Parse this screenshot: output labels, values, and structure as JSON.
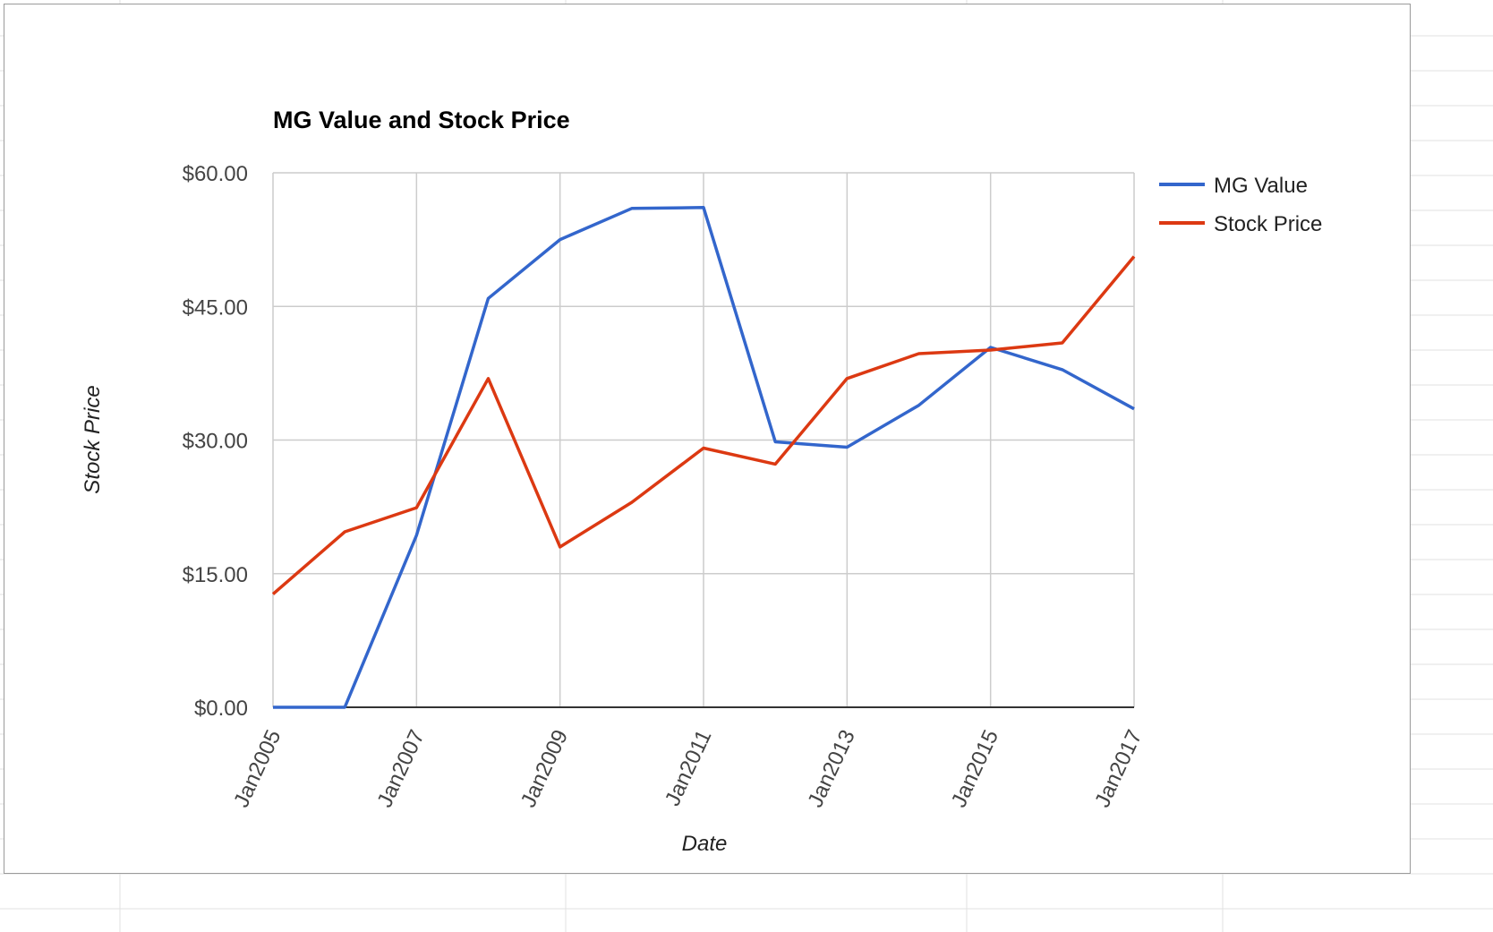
{
  "chart_data": {
    "type": "line",
    "title": "MG Value and Stock Price",
    "xlabel": "Date",
    "ylabel": "Stock Price",
    "x": [
      "Jan2005",
      "Jan2006",
      "Jan2007",
      "Jan2008",
      "Jan2009",
      "Jan2010",
      "Jan2011",
      "Jan2012",
      "Jan2013",
      "Jan2014",
      "Jan2015",
      "Jan2016",
      "Jan2017"
    ],
    "x_tick_labels": [
      "Jan2005",
      "Jan2007",
      "Jan2009",
      "Jan2011",
      "Jan2013",
      "Jan2015",
      "Jan2017"
    ],
    "y_tick_labels": [
      "$0.00",
      "$15.00",
      "$30.00",
      "$45.00",
      "$60.00"
    ],
    "y_ticks": [
      0,
      15,
      30,
      45,
      60
    ],
    "ylim": [
      0,
      60
    ],
    "grid": true,
    "legend_position": "right",
    "series": [
      {
        "name": "MG Value",
        "color": "#3366cc",
        "values": [
          0.0,
          0.0,
          19.3,
          45.9,
          52.5,
          56.0,
          56.1,
          29.8,
          29.2,
          33.9,
          40.4,
          37.9,
          33.5
        ]
      },
      {
        "name": "Stock Price",
        "color": "#dc3912",
        "values": [
          12.7,
          19.7,
          22.4,
          36.9,
          18.0,
          23.0,
          29.1,
          27.3,
          36.9,
          39.7,
          40.1,
          40.9,
          50.6
        ]
      }
    ]
  }
}
